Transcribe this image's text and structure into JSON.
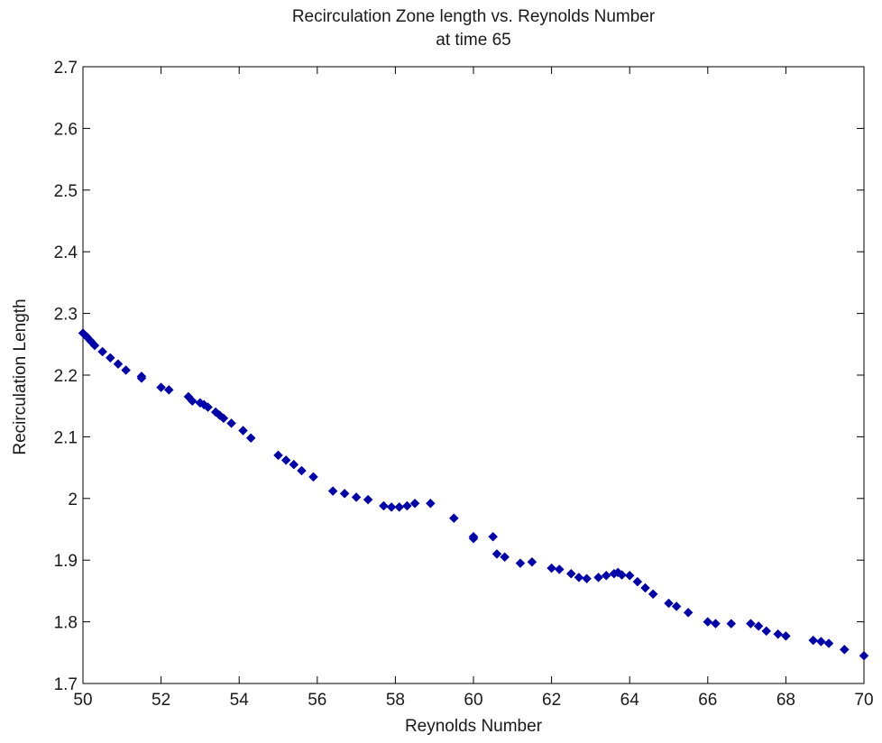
{
  "chart_data": {
    "type": "scatter",
    "title": "Recirculation Zone length vs. Reynolds Number",
    "subtitle": "at time 65",
    "xlabel": "Reynolds Number",
    "ylabel": "Recirculation Length",
    "xlim": [
      50,
      70
    ],
    "ylim": [
      1.7,
      2.7
    ],
    "xticks": [
      "50",
      "52",
      "54",
      "56",
      "58",
      "60",
      "62",
      "64",
      "66",
      "68",
      "70"
    ],
    "yticks": [
      "1.7",
      "1.8",
      "1.9",
      "2",
      "2.1",
      "2.2",
      "2.3",
      "2.4",
      "2.5",
      "2.6",
      "2.7"
    ],
    "grid": false,
    "marker": "diamond",
    "color": "#0000aa",
    "series": [
      {
        "x": [
          50.0,
          50.1,
          50.2,
          50.3,
          50.5,
          50.7,
          50.9,
          51.1,
          51.5,
          51.5,
          52.0,
          52.2,
          52.7,
          52.8,
          53.0,
          53.1,
          53.2,
          53.4,
          53.5,
          53.6,
          53.8,
          54.1,
          54.3,
          55.0,
          55.2,
          55.4,
          55.6,
          55.9,
          56.4,
          56.7,
          57.0,
          57.3,
          57.7,
          57.9,
          58.1,
          58.3,
          58.5,
          58.9,
          59.5,
          60.0,
          60.0,
          60.5,
          60.6,
          60.8,
          61.2,
          61.5,
          62.0,
          62.2,
          62.5,
          62.7,
          62.9,
          63.2,
          63.4,
          63.6,
          63.7,
          63.8,
          64.0,
          64.2,
          64.4,
          64.6,
          65.0,
          65.2,
          65.5,
          66.0,
          66.2,
          66.6,
          67.1,
          67.3,
          67.5,
          67.8,
          68.0,
          68.7,
          68.9,
          69.1,
          69.5,
          70.0
        ],
        "y": [
          2.268,
          2.262,
          2.255,
          2.248,
          2.238,
          2.228,
          2.218,
          2.208,
          2.198,
          2.195,
          2.18,
          2.176,
          2.165,
          2.158,
          2.155,
          2.152,
          2.148,
          2.14,
          2.135,
          2.13,
          2.122,
          2.11,
          2.098,
          2.07,
          2.062,
          2.055,
          2.045,
          2.035,
          2.012,
          2.008,
          2.002,
          1.998,
          1.988,
          1.986,
          1.986,
          1.988,
          1.992,
          1.992,
          1.968,
          1.938,
          1.935,
          1.938,
          1.91,
          1.905,
          1.895,
          1.897,
          1.887,
          1.885,
          1.878,
          1.872,
          1.87,
          1.872,
          1.875,
          1.878,
          1.88,
          1.876,
          1.875,
          1.865,
          1.855,
          1.845,
          1.83,
          1.825,
          1.815,
          1.8,
          1.797,
          1.797,
          1.797,
          1.793,
          1.785,
          1.78,
          1.777,
          1.77,
          1.768,
          1.765,
          1.755,
          1.745
        ]
      }
    ]
  }
}
